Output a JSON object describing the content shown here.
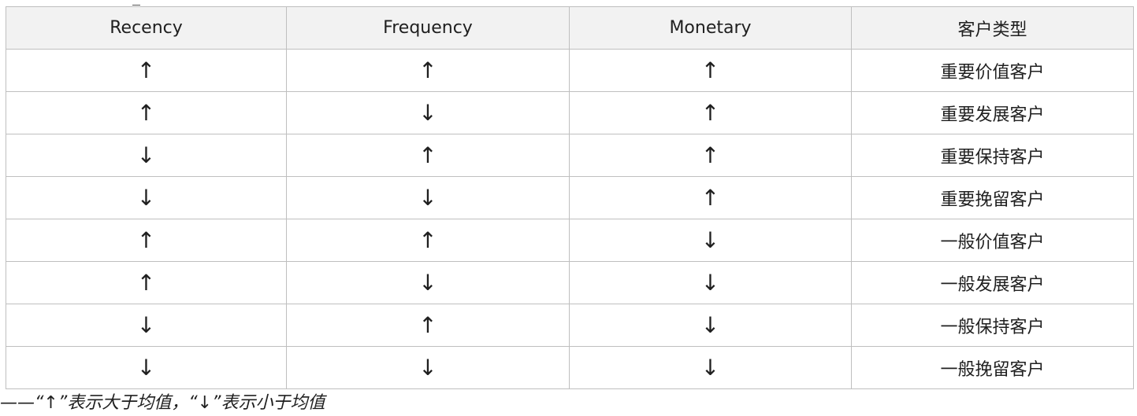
{
  "table": {
    "headers": [
      "Recency",
      "Frequency",
      "Monetary",
      "客户类型"
    ],
    "rows": [
      [
        "↑",
        "↑",
        "↑",
        "重要价值客户"
      ],
      [
        "↑",
        "↓",
        "↑",
        "重要发展客户"
      ],
      [
        "↓",
        "↑",
        "↑",
        "重要保持客户"
      ],
      [
        "↓",
        "↓",
        "↑",
        "重要挽留客户"
      ],
      [
        "↑",
        "↑",
        "↓",
        "一般价值客户"
      ],
      [
        "↑",
        "↓",
        "↓",
        "一般发展客户"
      ],
      [
        "↓",
        "↑",
        "↓",
        "一般保持客户"
      ],
      [
        "↓",
        "↓",
        "↓",
        "一般挽留客户"
      ]
    ]
  },
  "footnote": "——“↑”表示大于均值，“↓”表示小于均值"
}
